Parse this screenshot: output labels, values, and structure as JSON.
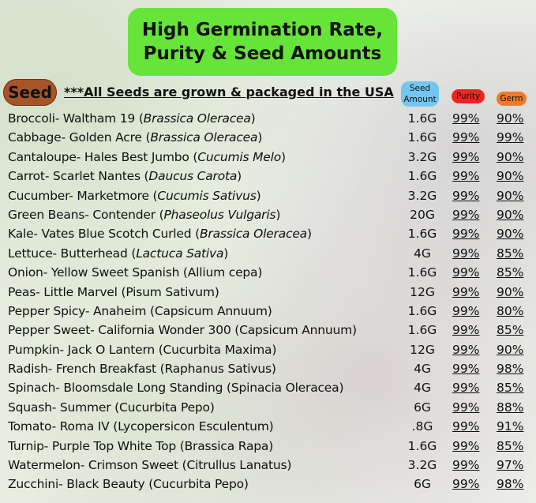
{
  "title": {
    "line1": "High Germination Rate,",
    "line2": "Purity & Seed Amounts"
  },
  "seed_label": "Seed",
  "note": "***All Seeds are grown & packaged in the USA",
  "headers": {
    "amount_line1": "Seed",
    "amount_line2": "Amount",
    "purity": "Purity",
    "germ": "Germ"
  },
  "colors": {
    "title_bg": "#67e43a",
    "seed_pill": "#a8542a",
    "amount_header": "#71c7ef",
    "purity_header": "#f02424",
    "germ_header": "#f07a2a"
  },
  "rows": [
    {
      "name": "Broccoli- Waltham 19 (",
      "sci": "Brassica Oleracea",
      "end": ")",
      "amount": "1.6G",
      "purity": "99%",
      "germ": "90%"
    },
    {
      "name": "Cabbage- Golden Acre (",
      "sci": "Brassica Oleracea",
      "end": ")",
      "amount": "1.6G",
      "purity": "99%",
      "germ": "99%"
    },
    {
      "name": "Cantaloupe- Hales Best Jumbo (",
      "sci": "Cucumis Melo",
      "end": ")",
      "amount": "3.2G",
      "purity": "99%",
      "germ": "90%"
    },
    {
      "name": "Carrot- Scarlet Nantes (",
      "sci": "Daucus Carota",
      "end": ")",
      "amount": "1.6G",
      "purity": "99%",
      "germ": "90%"
    },
    {
      "name": "Cucumber- Marketmore (",
      "sci": "Cucumis Sativus",
      "end": ")",
      "amount": "3.2G",
      "purity": "99%",
      "germ": "90%"
    },
    {
      "name": "Green Beans- Contender (",
      "sci": "Phaseolus Vulgaris",
      "end": ")",
      "amount": "20G",
      "purity": "99%",
      "germ": "90%"
    },
    {
      "name": "Kale- Vates Blue Scotch Curled (",
      "sci": "Brassica Oleracea",
      "end": ")",
      "amount": "1.6G",
      "purity": "99%",
      "germ": "90%"
    },
    {
      "name": "Lettuce- Butterhead (",
      "sci": "Lactuca Sativa",
      "end": ")",
      "amount": "4G",
      "purity": "99%",
      "germ": "85%"
    },
    {
      "name": "Onion- Yellow Sweet Spanish (Allium cepa)",
      "sci": "",
      "end": "",
      "amount": "1.6G",
      "purity": "99%",
      "germ": "85%"
    },
    {
      "name": "Peas- Little Marvel (Pisum Sativum)",
      "sci": "",
      "end": "",
      "amount": "12G",
      "purity": "99%",
      "germ": "90%"
    },
    {
      "name": "Pepper Spicy- Anaheim (Capsicum Annuum)",
      "sci": "",
      "end": "",
      "amount": "1.6G",
      "purity": "99%",
      "germ": "80%"
    },
    {
      "name": "Pepper Sweet- California Wonder 300 (Capsicum Annuum)",
      "sci": "",
      "end": "",
      "amount": "1.6G",
      "purity": "99%",
      "germ": "85%"
    },
    {
      "name": "Pumpkin- Jack O Lantern (Cucurbita Maxima)",
      "sci": "",
      "end": "",
      "amount": "12G",
      "purity": "99%",
      "germ": "90%"
    },
    {
      "name": "Radish- French Breakfast (Raphanus Sativus)",
      "sci": "",
      "end": "",
      "amount": "4G",
      "purity": "99%",
      "germ": "98%"
    },
    {
      "name": "Spinach- Bloomsdale Long Standing (Spinacia Oleracea)",
      "sci": "",
      "end": "",
      "amount": "4G",
      "purity": "99%",
      "germ": "85%"
    },
    {
      "name": "Squash- Summer (Cucurbita Pepo)",
      "sci": "",
      "end": "",
      "amount": "6G",
      "purity": "99%",
      "germ": "88%"
    },
    {
      "name": "Tomato- Roma IV (Lycopersicon Esculentum)",
      "sci": "",
      "end": "",
      "amount": ".8G",
      "purity": "99%",
      "germ": "91%"
    },
    {
      "name": "Turnip- Purple Top White Top (Brassica Rapa)",
      "sci": "",
      "end": "",
      "amount": "1.6G",
      "purity": "99%",
      "germ": "85%"
    },
    {
      "name": "Watermelon- Crimson Sweet (Citrullus Lanatus)",
      "sci": "",
      "end": "",
      "amount": "3.2G",
      "purity": "99%",
      "germ": "97%"
    },
    {
      "name": "Zucchini- Black Beauty (Cucurbita Pepo)",
      "sci": "",
      "end": "",
      "amount": "6G",
      "purity": "99%",
      "germ": "98%"
    }
  ]
}
